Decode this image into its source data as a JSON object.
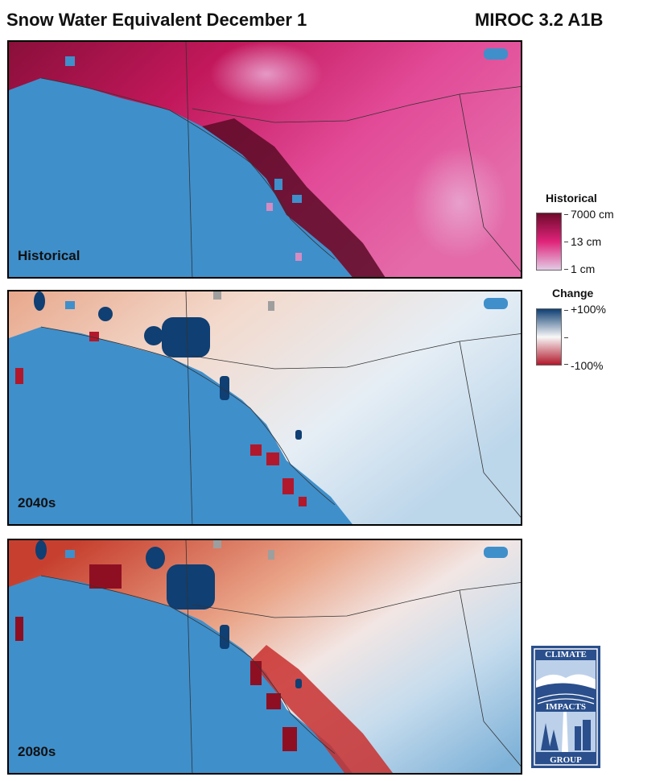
{
  "header": {
    "title": "Snow Water Equivalent December 1",
    "model": "MIROC 3.2 A1B"
  },
  "panels": [
    {
      "label": "Historical",
      "map": "historical-swe-map"
    },
    {
      "label": "2040s",
      "map": "change-2040s-map"
    },
    {
      "label": "2080s",
      "map": "change-2080s-map"
    }
  ],
  "legend_historical": {
    "title": "Historical",
    "ticks": [
      "7000 cm",
      "13 cm",
      "1 cm"
    ],
    "colors": [
      "#6e0a2b",
      "#e0237a",
      "#e2cbe6"
    ]
  },
  "legend_change": {
    "title": "Change",
    "ticks": [
      "+100%",
      "",
      "-100%"
    ],
    "colors": [
      "#0f3f73",
      "#f7f7f7",
      "#b2182b"
    ]
  },
  "logo": {
    "top_text": "CLIMATE",
    "middle_text": "IMPACTS",
    "bottom_text": "GROUP",
    "color": "#2a4f8c"
  },
  "colors": {
    "ocean": "#3f8fcb",
    "boundary": "#333333"
  }
}
